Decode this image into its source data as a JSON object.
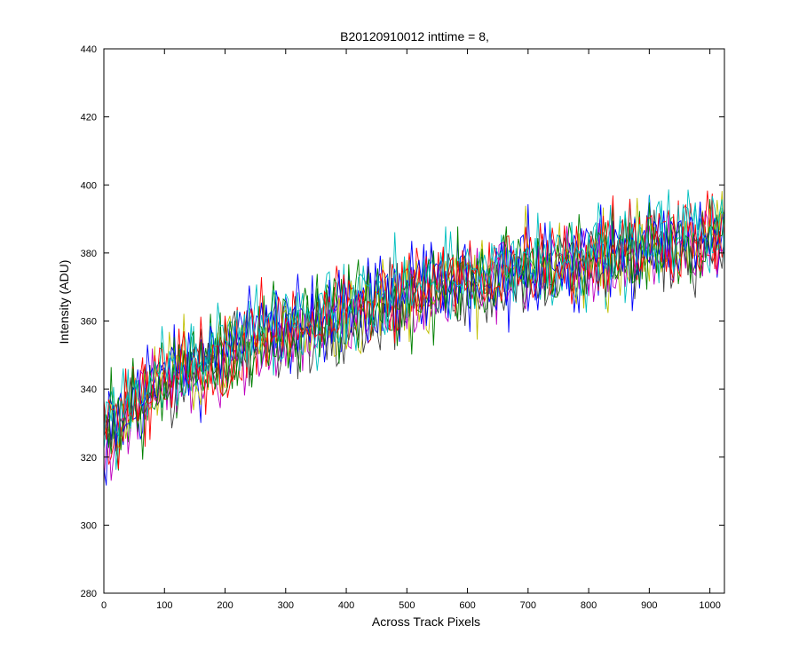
{
  "chart_data": {
    "type": "line",
    "title": "B20120910012 inttime = 8,",
    "xlabel": "Across Track Pixels",
    "ylabel": "Intensity (ADU)",
    "xlim": [
      0,
      1024
    ],
    "ylim": [
      280,
      440
    ],
    "xticks": [
      0,
      100,
      200,
      300,
      400,
      500,
      600,
      700,
      800,
      900,
      1000
    ],
    "yticks": [
      280,
      300,
      320,
      340,
      360,
      380,
      400,
      420,
      440
    ],
    "x_start": 0,
    "x_end": 1024,
    "x_step": 4,
    "grid": false,
    "legend": "none",
    "noise_amplitude": 12,
    "series": [
      {
        "color": "#0000ff",
        "trend_x": [
          0,
          100,
          200,
          300,
          400,
          500,
          600,
          700,
          800,
          900,
          1024
        ],
        "trend_y": [
          325,
          343,
          350,
          358,
          363,
          367,
          371,
          374,
          377,
          381,
          384
        ]
      },
      {
        "color": "#008000",
        "trend_x": [
          0,
          100,
          200,
          300,
          400,
          500,
          600,
          700,
          800,
          900,
          1024
        ],
        "trend_y": [
          327,
          344,
          351,
          357,
          364,
          366,
          372,
          375,
          378,
          382,
          386
        ]
      },
      {
        "color": "#ff0000",
        "trend_x": [
          0,
          100,
          200,
          300,
          400,
          500,
          600,
          700,
          800,
          900,
          1024
        ],
        "trend_y": [
          324,
          342,
          349,
          356,
          361,
          368,
          372,
          376,
          379,
          383,
          385
        ]
      },
      {
        "color": "#00bfbf",
        "trend_x": [
          0,
          100,
          200,
          300,
          400,
          500,
          600,
          700,
          800,
          900,
          1024
        ],
        "trend_y": [
          328,
          345,
          352,
          359,
          362,
          369,
          373,
          377,
          378,
          384,
          387
        ]
      },
      {
        "color": "#bf00bf",
        "trend_x": [
          0,
          100,
          200,
          300,
          400,
          500,
          600,
          700,
          800,
          900,
          1024
        ],
        "trend_y": [
          323,
          341,
          348,
          355,
          360,
          365,
          370,
          374,
          376,
          380,
          383
        ]
      },
      {
        "color": "#bfbf00",
        "trend_x": [
          0,
          100,
          200,
          300,
          400,
          500,
          600,
          700,
          800,
          900,
          1024
        ],
        "trend_y": [
          326,
          343,
          350,
          357,
          362,
          368,
          371,
          375,
          378,
          381,
          385
        ]
      },
      {
        "color": "#404040",
        "trend_x": [
          0,
          100,
          200,
          300,
          400,
          500,
          600,
          700,
          800,
          900,
          1024
        ],
        "trend_y": [
          325,
          342,
          349,
          356,
          361,
          367,
          370,
          374,
          377,
          380,
          384
        ]
      },
      {
        "color": "#0000ff",
        "trend_x": [
          0,
          100,
          200,
          300,
          400,
          500,
          600,
          700,
          800,
          900,
          1024
        ],
        "trend_y": [
          327,
          345,
          352,
          358,
          363,
          369,
          373,
          376,
          379,
          383,
          386
        ]
      },
      {
        "color": "#008000",
        "trend_x": [
          0,
          100,
          200,
          300,
          400,
          500,
          600,
          700,
          800,
          900,
          1024
        ],
        "trend_y": [
          326,
          343,
          350,
          357,
          362,
          367,
          371,
          375,
          378,
          382,
          385
        ]
      },
      {
        "color": "#ff0000",
        "trend_x": [
          0,
          100,
          200,
          300,
          400,
          500,
          600,
          700,
          800,
          900,
          1024
        ],
        "trend_y": [
          328,
          344,
          351,
          358,
          364,
          368,
          373,
          377,
          380,
          384,
          387
        ]
      },
      {
        "color": "#00bfbf",
        "trend_x": [
          0,
          100,
          200,
          300,
          400,
          500,
          600,
          700,
          800,
          900,
          1024
        ],
        "trend_y": [
          327,
          345,
          353,
          360,
          365,
          370,
          374,
          378,
          381,
          385,
          388
        ]
      }
    ]
  }
}
